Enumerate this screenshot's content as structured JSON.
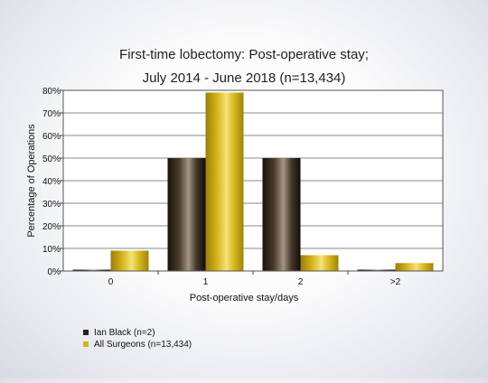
{
  "chart_data": {
    "type": "bar",
    "title": [
      "First-time lobectomy: Post-operative stay;",
      "July 2014 - June 2018 (n=13,434)"
    ],
    "xlabel": "Post-operative stay/days",
    "ylabel": "Percentage of Operations",
    "categories": [
      "0",
      "1",
      "2",
      ">2"
    ],
    "ylim": [
      0,
      80
    ],
    "yticks": [
      "0%",
      "10%",
      "20%",
      "30%",
      "40%",
      "50%",
      "60%",
      "70%",
      "80%"
    ],
    "grid": true,
    "legend_position": "bottom-left",
    "series": [
      {
        "name": "Ian Black (n=2)",
        "values": [
          0,
          50,
          50,
          0
        ],
        "color": "#2a2018"
      },
      {
        "name": "All Surgeons (n=13,434)",
        "values": [
          9,
          79,
          7,
          3.5
        ],
        "color": "#d4b61c"
      }
    ]
  }
}
